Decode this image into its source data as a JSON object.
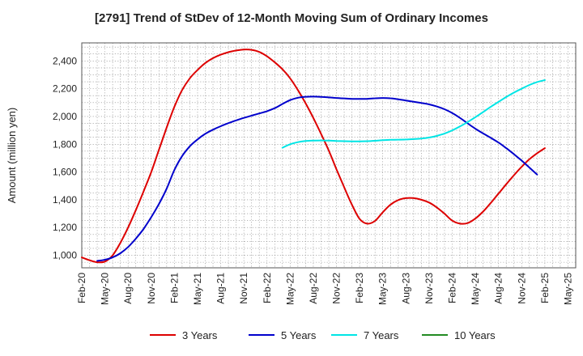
{
  "chart_data": {
    "type": "line",
    "title": "[2791]  Trend of StDev of 12-Month Moving Sum of Ordinary Incomes",
    "xlabel": "",
    "ylabel": "Amount (million yen)",
    "ylim": [
      910,
      2530
    ],
    "yticks": [
      1000,
      1200,
      1400,
      1600,
      1800,
      2000,
      2200,
      2400
    ],
    "ytick_labels": [
      "1,000",
      "1,200",
      "1,400",
      "1,600",
      "1,800",
      "2,000",
      "2,200",
      "2,400"
    ],
    "xticks": [
      "Feb-20",
      "May-20",
      "Aug-20",
      "Nov-20",
      "Feb-21",
      "May-21",
      "Aug-21",
      "Nov-21",
      "Feb-22",
      "May-22",
      "Aug-22",
      "Nov-22",
      "Feb-23",
      "May-23",
      "Aug-23",
      "Nov-23",
      "Feb-24",
      "May-24",
      "Aug-24",
      "Nov-24",
      "Feb-25",
      "May-25"
    ],
    "grid": true,
    "legend_position": "bottom",
    "series": [
      {
        "name": "3 Years",
        "color": "#dd0000",
        "points": [
          [
            "Feb-20",
            985
          ],
          [
            "Mar-20",
            965
          ],
          [
            "Apr-20",
            950
          ],
          [
            "May-20",
            955
          ],
          [
            "Jun-20",
            1000
          ],
          [
            "Jul-20",
            1090
          ],
          [
            "Aug-20",
            1200
          ],
          [
            "Sep-20",
            1325
          ],
          [
            "Oct-20",
            1460
          ],
          [
            "Nov-20",
            1600
          ],
          [
            "Dec-20",
            1760
          ],
          [
            "Jan-21",
            1920
          ],
          [
            "Feb-21",
            2070
          ],
          [
            "Mar-21",
            2190
          ],
          [
            "Apr-21",
            2275
          ],
          [
            "May-21",
            2335
          ],
          [
            "Jun-21",
            2385
          ],
          [
            "Jul-21",
            2420
          ],
          [
            "Aug-21",
            2445
          ],
          [
            "Sep-21",
            2463
          ],
          [
            "Oct-21",
            2475
          ],
          [
            "Nov-21",
            2482
          ],
          [
            "Dec-21",
            2480
          ],
          [
            "Jan-22",
            2465
          ],
          [
            "Feb-22",
            2433
          ],
          [
            "Mar-22",
            2390
          ],
          [
            "Apr-22",
            2340
          ],
          [
            "May-22",
            2275
          ],
          [
            "Jun-22",
            2190
          ],
          [
            "Jul-22",
            2095
          ],
          [
            "Aug-22",
            1990
          ],
          [
            "Sep-22",
            1875
          ],
          [
            "Oct-22",
            1755
          ],
          [
            "Nov-22",
            1620
          ],
          [
            "Dec-22",
            1490
          ],
          [
            "Jan-23",
            1365
          ],
          [
            "Feb-23",
            1262
          ],
          [
            "Mar-23",
            1228
          ],
          [
            "Apr-23",
            1248
          ],
          [
            "May-23",
            1310
          ],
          [
            "Jun-23",
            1365
          ],
          [
            "Jul-23",
            1398
          ],
          [
            "Aug-23",
            1412
          ],
          [
            "Sep-23",
            1412
          ],
          [
            "Oct-23",
            1400
          ],
          [
            "Nov-23",
            1380
          ],
          [
            "Dec-23",
            1345
          ],
          [
            "Jan-24",
            1300
          ],
          [
            "Feb-24",
            1250
          ],
          [
            "Mar-24",
            1228
          ],
          [
            "Apr-24",
            1232
          ],
          [
            "May-24",
            1265
          ],
          [
            "Jun-24",
            1315
          ],
          [
            "Jul-24",
            1378
          ],
          [
            "Aug-24",
            1445
          ],
          [
            "Sep-24",
            1512
          ],
          [
            "Oct-24",
            1577
          ],
          [
            "Nov-24",
            1638
          ],
          [
            "Dec-24",
            1692
          ],
          [
            "Jan-25",
            1735
          ],
          [
            "Feb-25",
            1772
          ]
        ]
      },
      {
        "name": "5 Years",
        "color": "#0000cc",
        "points": [
          [
            "Apr-20",
            960
          ],
          [
            "May-20",
            968
          ],
          [
            "Jun-20",
            985
          ],
          [
            "Jul-20",
            1015
          ],
          [
            "Aug-20",
            1060
          ],
          [
            "Sep-20",
            1120
          ],
          [
            "Oct-20",
            1190
          ],
          [
            "Nov-20",
            1275
          ],
          [
            "Dec-20",
            1370
          ],
          [
            "Jan-21",
            1480
          ],
          [
            "Feb-21",
            1615
          ],
          [
            "Mar-21",
            1715
          ],
          [
            "Apr-21",
            1785
          ],
          [
            "May-21",
            1835
          ],
          [
            "Jun-21",
            1875
          ],
          [
            "Jul-21",
            1905
          ],
          [
            "Aug-21",
            1930
          ],
          [
            "Sep-21",
            1952
          ],
          [
            "Oct-21",
            1972
          ],
          [
            "Nov-21",
            1990
          ],
          [
            "Dec-21",
            2006
          ],
          [
            "Jan-22",
            2022
          ],
          [
            "Feb-22",
            2038
          ],
          [
            "Mar-22",
            2060
          ],
          [
            "Apr-22",
            2090
          ],
          [
            "May-22",
            2118
          ],
          [
            "Jun-22",
            2135
          ],
          [
            "Jul-22",
            2142
          ],
          [
            "Aug-22",
            2143
          ],
          [
            "Sep-22",
            2141
          ],
          [
            "Oct-22",
            2137
          ],
          [
            "Nov-22",
            2133
          ],
          [
            "Dec-22",
            2130
          ],
          [
            "Jan-23",
            2127
          ],
          [
            "Feb-23",
            2126
          ],
          [
            "Mar-23",
            2127
          ],
          [
            "Apr-23",
            2131
          ],
          [
            "May-23",
            2133
          ],
          [
            "Jun-23",
            2131
          ],
          [
            "Jul-23",
            2124
          ],
          [
            "Aug-23",
            2115
          ],
          [
            "Sep-23",
            2106
          ],
          [
            "Oct-23",
            2097
          ],
          [
            "Nov-23",
            2087
          ],
          [
            "Dec-23",
            2072
          ],
          [
            "Jan-24",
            2052
          ],
          [
            "Feb-24",
            2025
          ],
          [
            "Mar-24",
            1990
          ],
          [
            "Apr-24",
            1950
          ],
          [
            "May-24",
            1912
          ],
          [
            "Jun-24",
            1878
          ],
          [
            "Jul-24",
            1846
          ],
          [
            "Aug-24",
            1812
          ],
          [
            "Sep-24",
            1772
          ],
          [
            "Oct-24",
            1728
          ],
          [
            "Nov-24",
            1682
          ],
          [
            "Dec-24",
            1632
          ],
          [
            "Jan-25",
            1582
          ]
        ]
      },
      {
        "name": "7 Years",
        "color": "#00e5e5",
        "points": [
          [
            "Apr-22",
            1775
          ],
          [
            "May-22",
            1800
          ],
          [
            "Jun-22",
            1815
          ],
          [
            "Jul-22",
            1823
          ],
          [
            "Aug-22",
            1826
          ],
          [
            "Sep-22",
            1827
          ],
          [
            "Oct-22",
            1826
          ],
          [
            "Nov-22",
            1824
          ],
          [
            "Dec-22",
            1822
          ],
          [
            "Jan-23",
            1821
          ],
          [
            "Feb-23",
            1821
          ],
          [
            "Mar-23",
            1822
          ],
          [
            "Apr-23",
            1825
          ],
          [
            "May-23",
            1829
          ],
          [
            "Jun-23",
            1832
          ],
          [
            "Jul-23",
            1833
          ],
          [
            "Aug-23",
            1834
          ],
          [
            "Sep-23",
            1837
          ],
          [
            "Oct-23",
            1841
          ],
          [
            "Nov-23",
            1848
          ],
          [
            "Dec-23",
            1860
          ],
          [
            "Jan-24",
            1877
          ],
          [
            "Feb-24",
            1900
          ],
          [
            "Mar-24",
            1928
          ],
          [
            "Apr-24",
            1960
          ],
          [
            "May-24",
            1995
          ],
          [
            "Jun-24",
            2032
          ],
          [
            "Jul-24",
            2070
          ],
          [
            "Aug-24",
            2105
          ],
          [
            "Sep-24",
            2140
          ],
          [
            "Oct-24",
            2172
          ],
          [
            "Nov-24",
            2200
          ],
          [
            "Dec-24",
            2227
          ],
          [
            "Jan-25",
            2248
          ],
          [
            "Feb-25",
            2262
          ]
        ]
      },
      {
        "name": "10 Years",
        "color": "#228b22",
        "points": []
      }
    ]
  }
}
